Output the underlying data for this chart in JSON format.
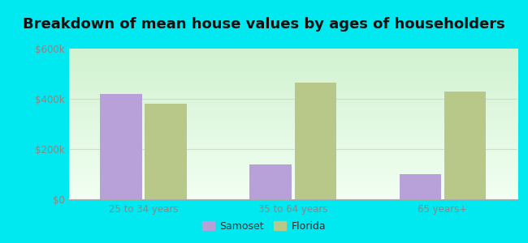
{
  "title": "Breakdown of mean house values by ages of householders",
  "categories": [
    "25 to 34 years",
    "35 to 64 years",
    "65 years+"
  ],
  "samoset_values": [
    420000,
    140000,
    100000
  ],
  "florida_values": [
    380000,
    465000,
    430000
  ],
  "samoset_color": "#b8a0d8",
  "florida_color": "#b8c888",
  "ylim": [
    0,
    600000
  ],
  "yticks": [
    0,
    200000,
    400000,
    600000
  ],
  "ytick_labels": [
    "$0",
    "$200k",
    "$400k",
    "$600k"
  ],
  "background_outer": "#00e8f0",
  "bar_width": 0.28,
  "title_fontsize": 13,
  "legend_labels": [
    "Samoset",
    "Florida"
  ],
  "tick_color": "#888888",
  "grid_color": "#ddeecc"
}
